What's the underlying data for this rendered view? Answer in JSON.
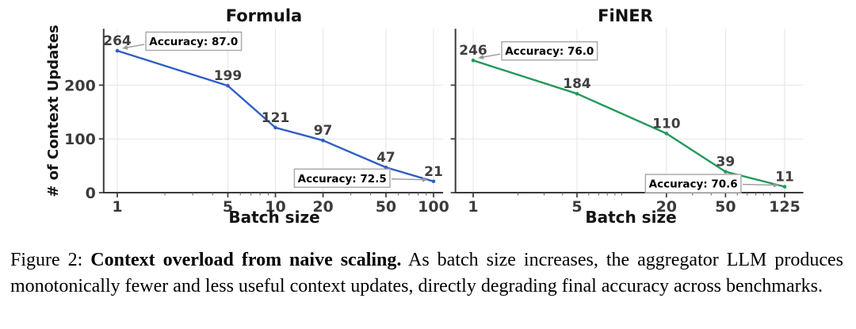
{
  "caption": {
    "prefix": "Figure 2: ",
    "bold": "Context overload from naive scaling.",
    "rest": " As batch size increases, the aggregator LLM produces monotonically fewer and less useful context updates, directly degrading final accuracy across benchmarks."
  },
  "chart_data": [
    {
      "type": "line",
      "title": "Formula",
      "line_color": "#2f5ec4",
      "x": [
        1,
        5,
        10,
        20,
        50,
        100
      ],
      "values": [
        264,
        199,
        121,
        97,
        47,
        21
      ],
      "xlabel": "Batch size",
      "ylabel": "# of Context Updates",
      "x_scale": "log",
      "x_ticks": [
        1,
        5,
        10,
        20,
        50,
        100
      ],
      "y_ticks": [
        0,
        100,
        200
      ],
      "y_gridlines": [
        100,
        200
      ],
      "xlim": [
        0.82,
        115
      ],
      "ylim": [
        0,
        305
      ],
      "grid": true,
      "legend": "none",
      "annotations": [
        {
          "text": "Accuracy: 87.0",
          "x": 1,
          "y": 264,
          "side": "right"
        },
        {
          "text": "Accuracy: 72.5",
          "x": 100,
          "y": 21,
          "side": "left"
        }
      ]
    },
    {
      "type": "line",
      "title": "FiNER",
      "line_color": "#23995b",
      "x": [
        1,
        5,
        20,
        50,
        125
      ],
      "values": [
        246,
        184,
        110,
        39,
        11
      ],
      "xlabel": "Batch size",
      "ylabel": "",
      "x_scale": "log",
      "x_ticks": [
        1,
        5,
        20,
        50,
        125
      ],
      "y_ticks": [],
      "y_gridlines": [
        100,
        200
      ],
      "xlim": [
        0.76,
        167
      ],
      "ylim": [
        0,
        305
      ],
      "grid": true,
      "legend": "none",
      "annotations": [
        {
          "text": "Accuracy: 76.0",
          "x": 1,
          "y": 246,
          "side": "right"
        },
        {
          "text": "Accuracy: 70.6",
          "x": 125,
          "y": 11,
          "side": "left"
        }
      ]
    }
  ]
}
